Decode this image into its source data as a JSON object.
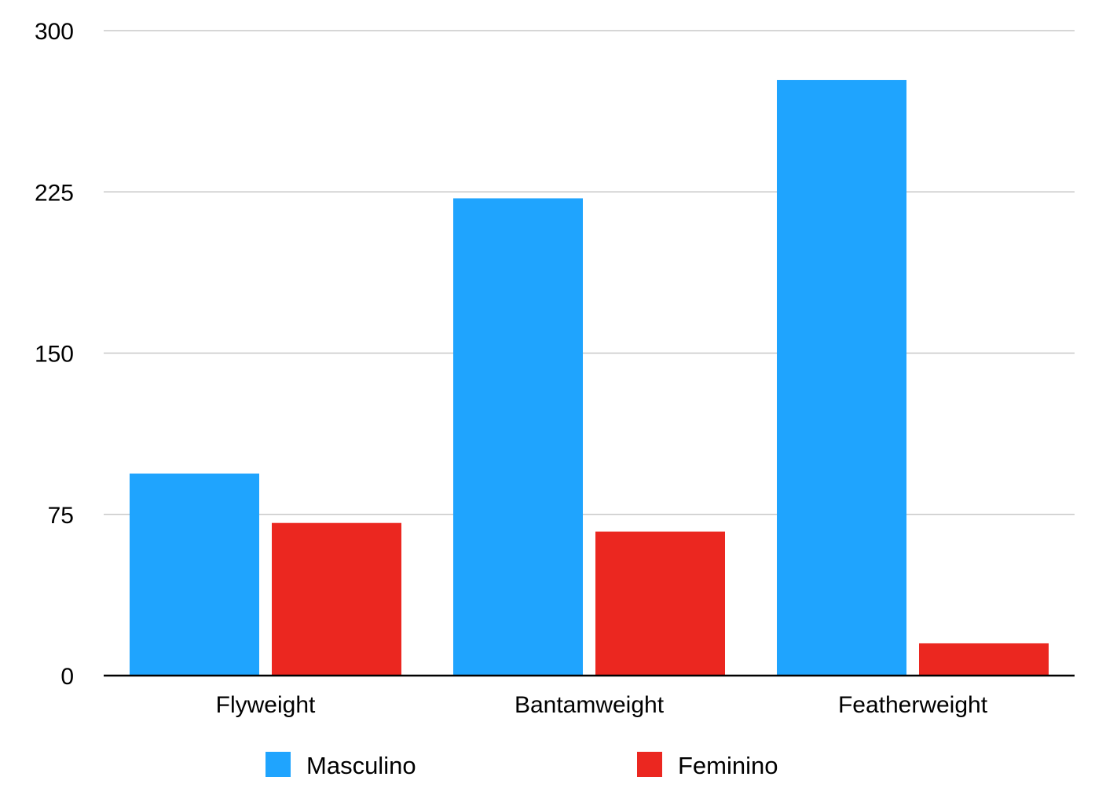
{
  "chart_data": {
    "type": "bar",
    "title": "",
    "xlabel": "",
    "ylabel": "",
    "categories": [
      "Flyweight",
      "Bantamweight",
      "Featherweight"
    ],
    "series": [
      {
        "name": "Masculino",
        "color": "#1fa4fe",
        "values": [
          94,
          222,
          277
        ]
      },
      {
        "name": "Feminino",
        "color": "#eb2720",
        "values": [
          71,
          67,
          15
        ]
      }
    ],
    "ylim": [
      0,
      300
    ],
    "yticks": [
      0,
      75,
      150,
      225,
      300
    ],
    "grid": true,
    "legend_position": "bottom"
  }
}
